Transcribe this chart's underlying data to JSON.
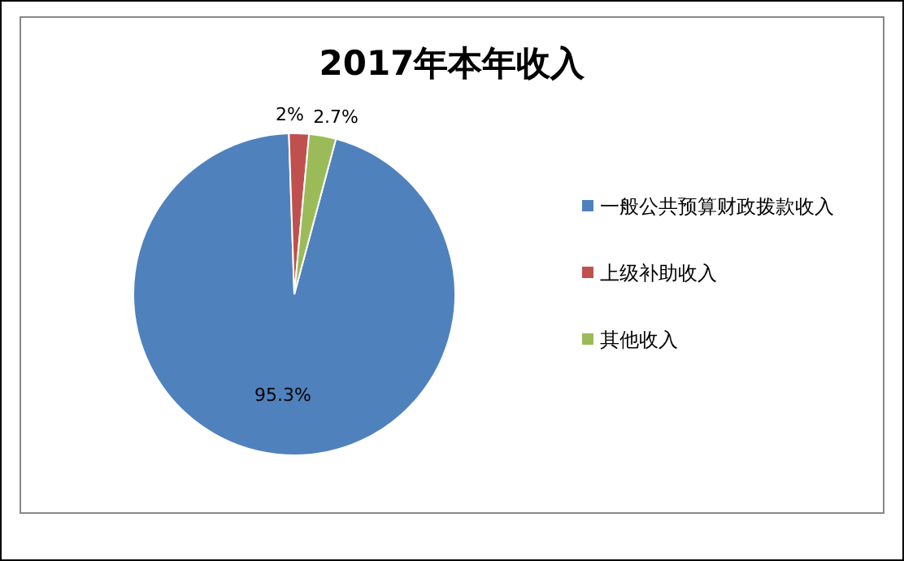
{
  "chart_data": {
    "type": "pie",
    "title": "2017年本年收入",
    "categories": [
      "一般公共预算财政拨款收入",
      "上级补助收入",
      "其他收入"
    ],
    "values": [
      95.3,
      2,
      2.7
    ],
    "value_labels": [
      "95.3%",
      "2%",
      "2.7%"
    ],
    "colors": [
      "#4f81bd",
      "#c0504d",
      "#9bbb59"
    ],
    "legend": "right"
  }
}
